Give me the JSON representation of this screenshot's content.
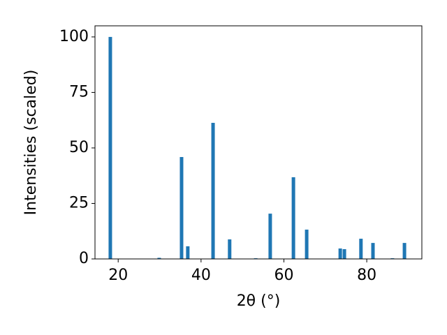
{
  "chart_data": {
    "type": "bar",
    "xlabel": "2θ (°)",
    "ylabel": "Intensities (scaled)",
    "x": [
      18.1,
      29.9,
      35.3,
      36.8,
      42.9,
      46.9,
      53.2,
      56.7,
      62.3,
      65.5,
      73.6,
      74.6,
      78.6,
      81.5,
      86.2,
      89.1
    ],
    "values": [
      100,
      0.5,
      45.9,
      5.7,
      61.3,
      8.8,
      0.3,
      20.4,
      36.8,
      13.2,
      4.7,
      4.4,
      9.1,
      7.2,
      0.3,
      7.2
    ],
    "color": "#1f77b4",
    "xlim": [
      14.4,
      93.3
    ],
    "ylim": [
      0,
      105
    ],
    "xticks": [
      20,
      40,
      60,
      80
    ],
    "yticks": [
      0,
      25,
      50,
      75,
      100
    ],
    "grid": false
  }
}
